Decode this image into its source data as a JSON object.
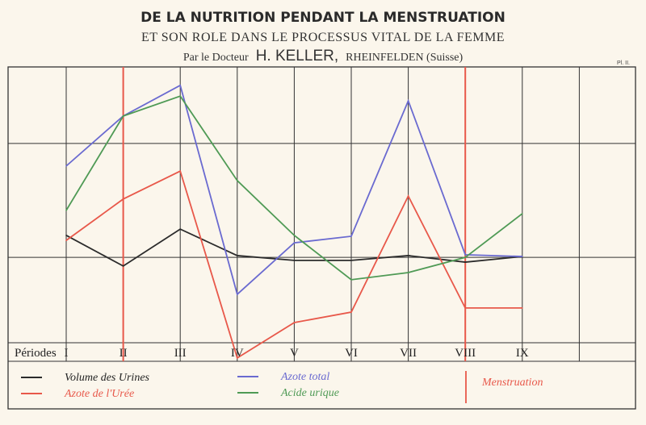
{
  "chart_data": {
    "type": "line",
    "title": "DE LA NUTRITION PENDANT LA MENSTRUATION",
    "subtitle": "ET SON ROLE DANS LE PROCESSUS VITAL DE LA FEMME",
    "author_prefix": "Par le Docteur",
    "author": "H. KELLER,",
    "author_suffix": "RHEINFELDEN (Suisse)",
    "plate": "Pl. II.",
    "xlabel": "Périodes",
    "categories": [
      "I",
      "II",
      "III",
      "IV",
      "V",
      "VI",
      "VII",
      "VIII",
      "IX"
    ],
    "ylim": [
      0,
      100
    ],
    "grid_y": [
      74.3,
      36
    ],
    "menstruation_periods": [
      "II",
      "VIII"
    ],
    "series": [
      {
        "name": "Volume des Urines",
        "color": "#2b2b2b",
        "values": [
          43.4,
          33.1,
          45.5,
          36.6,
          35,
          35,
          36.6,
          34.4,
          36.3
        ]
      },
      {
        "name": "Azote de l'Urée",
        "color": "#e8584a",
        "values": [
          41.7,
          55.6,
          65,
          2.2,
          14.1,
          17.6,
          56.6,
          19,
          19
        ]
      },
      {
        "name": "Azote total",
        "color": "#6a6ad0",
        "values": [
          66.7,
          83.5,
          93.8,
          23.6,
          40.9,
          43.1,
          88.6,
          36.9,
          36.3
        ]
      },
      {
        "name": "Acide urique",
        "color": "#4f9a55",
        "values": [
          51.8,
          83.5,
          90.2,
          61.8,
          43.4,
          28.5,
          30.9,
          36,
          50.7
        ]
      }
    ],
    "menstruation_label": "Menstruation",
    "menstruation_color": "#e8584a"
  }
}
